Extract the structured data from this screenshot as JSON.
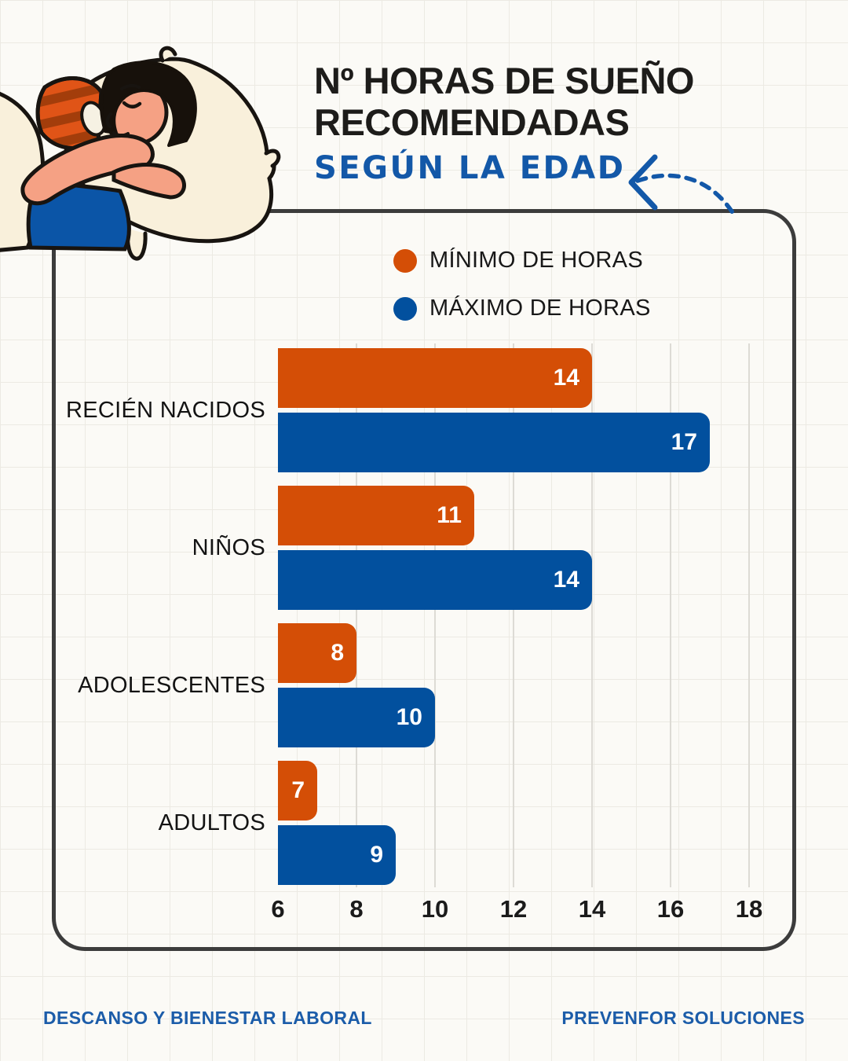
{
  "header": {
    "title_line1": "Nº HORAS DE SUEÑO",
    "title_line2": "RECOMENDADAS",
    "subtitle": "SEGÚN LA EDAD"
  },
  "chart_data": {
    "type": "bar",
    "orientation": "horizontal",
    "title": "Nº HORAS DE SUEÑO RECOMENDADAS SEGÚN LA EDAD",
    "categories": [
      "RECIÉN NACIDOS",
      "NIÑOS",
      "ADOLESCENTES",
      "ADULTOS"
    ],
    "series": [
      {
        "name": "MÍNIMO DE HORAS",
        "color": "#D44E06",
        "values": [
          14,
          11,
          8,
          7
        ]
      },
      {
        "name": "MÁXIMO DE HORAS",
        "color": "#02509E",
        "values": [
          17,
          14,
          10,
          9
        ]
      }
    ],
    "x_axis": {
      "min": 6,
      "max": 18,
      "ticks": [
        6,
        8,
        10,
        12,
        14,
        16,
        18
      ]
    },
    "grid": true,
    "legend_position": "top-center",
    "value_labels": "inside-end"
  },
  "icons": {
    "arrow": "curved-dashed-arrow-left",
    "legend_min": "orange-circle",
    "legend_max": "blue-circle",
    "illustration": "person-sleeping-on-pillow"
  },
  "colors": {
    "min_orange": "#D44E06",
    "max_blue": "#02509E",
    "subtitle_blue": "#1358A8",
    "footer_blue": "#1B5CA9",
    "card_border": "#3C3C3C"
  },
  "footer": {
    "left": "DESCANSO Y BIENESTAR LABORAL",
    "right": "PREVENFOR SOLUCIONES"
  }
}
